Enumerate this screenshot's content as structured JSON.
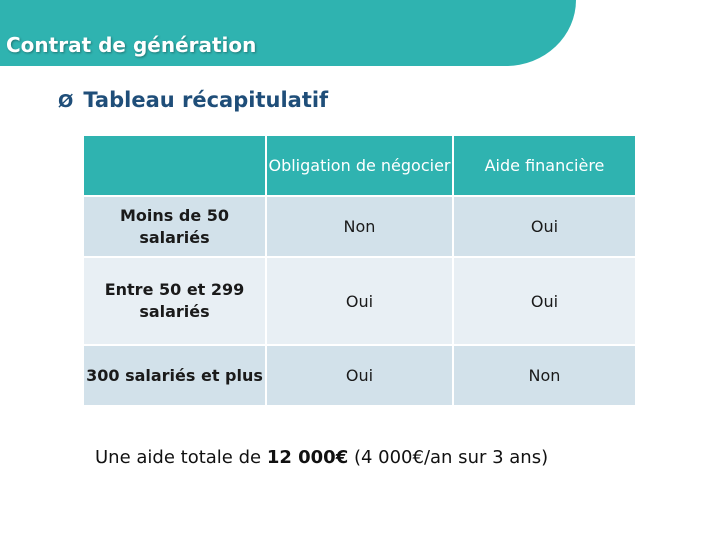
{
  "header": {
    "title": "Contrat de génération"
  },
  "section": {
    "bullet": "Ø",
    "title": "Tableau récapitulatif"
  },
  "table": {
    "columns": [
      "",
      "Obligation de négocier",
      "Aide financière"
    ],
    "rows": [
      {
        "label": "Moins de 50 salariés",
        "obligation": "Non",
        "aide": "Oui"
      },
      {
        "label": "Entre 50 et 299 salariés",
        "obligation": "Oui",
        "aide": "Oui"
      },
      {
        "label": "300 salariés et plus",
        "obligation": "Oui",
        "aide": "Non"
      }
    ]
  },
  "footnote": {
    "prefix": "Une aide totale de ",
    "amount": "12 000€",
    "suffix": " (4 000€/an sur 3 ans)"
  },
  "colors": {
    "accent": "#2fb3b0",
    "title_blue": "#1f4e79",
    "row_dark": "#d2e1ea",
    "row_light": "#e8eff4"
  }
}
